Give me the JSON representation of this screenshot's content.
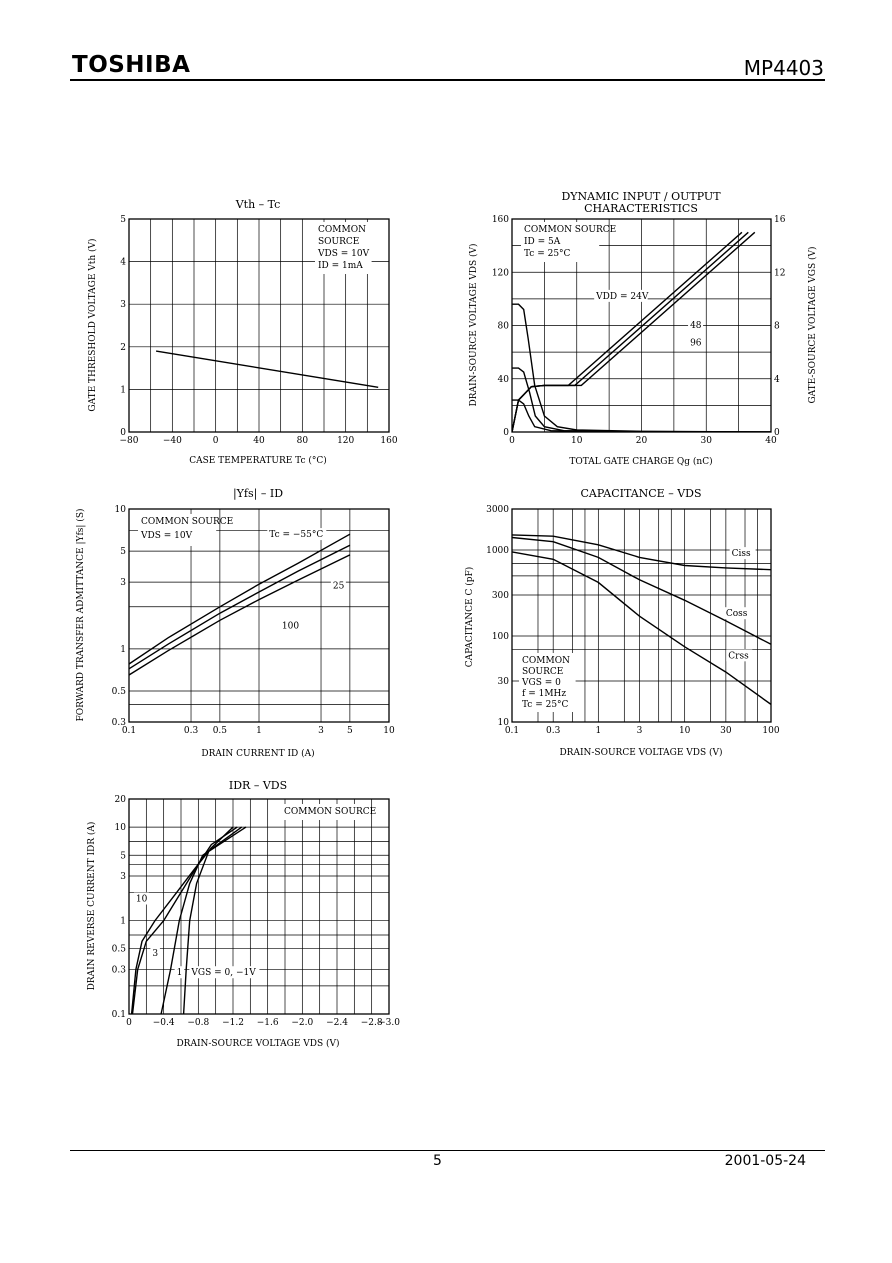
{
  "header": {
    "brand": "TOSHIBA",
    "part_number": "MP4403"
  },
  "footer": {
    "page": "5",
    "date": "2001-05-24"
  },
  "chart_data": [
    {
      "id": "vth",
      "type": "line",
      "title": "Vth – Tc",
      "xlabel": "CASE TEMPERATURE Tc (°C)",
      "ylabel": "GATE THRESHOLD VOLTAGE Vth (V)",
      "xlim": [
        -80,
        160
      ],
      "ylim": [
        0,
        5
      ],
      "xscale": "linear",
      "yscale": "linear",
      "xticks": [
        -80,
        -40,
        0,
        40,
        80,
        120,
        160
      ],
      "xtick_labels": [
        "−80",
        "−40",
        "0",
        "40",
        "80",
        "120",
        "160"
      ],
      "xgrid": [
        -80,
        -60,
        -40,
        -20,
        0,
        20,
        40,
        60,
        80,
        100,
        120,
        140,
        160
      ],
      "yticks": [
        0,
        1,
        2,
        3,
        4,
        5
      ],
      "ytick_labels": [
        "0",
        "1",
        "2",
        "3",
        "4",
        "5"
      ],
      "ygrid": [
        0,
        1,
        2,
        3,
        4,
        5
      ],
      "notes": [
        "COMMON",
        "SOURCE",
        "VDS = 10V",
        "ID = 1mA"
      ],
      "series": [
        {
          "points": [
            [
              -55,
              1.9
            ],
            [
              150,
              1.05
            ]
          ]
        }
      ],
      "labels": []
    },
    {
      "id": "dyn",
      "type": "line",
      "title": "DYNAMIC INPUT / OUTPUT",
      "title2": "CHARACTERISTICS",
      "xlabel": "TOTAL GATE CHARGE Qg (nC)",
      "ylabel": "DRAIN-SOURCE VOLTAGE VDS (V)",
      "y2label": "GATE-SOURCE VOLTAGE VGS (V)",
      "xlim": [
        0,
        40
      ],
      "ylim": [
        0,
        160
      ],
      "y2lim": [
        0,
        16
      ],
      "xscale": "linear",
      "yscale": "linear",
      "xticks": [
        0,
        10,
        20,
        30,
        40
      ],
      "xtick_labels": [
        "0",
        "10",
        "20",
        "30",
        "40"
      ],
      "xgrid": [
        0,
        5,
        10,
        15,
        20,
        25,
        30,
        35,
        40
      ],
      "yticks": [
        0,
        40,
        80,
        120,
        160
      ],
      "ytick_labels": [
        "0",
        "40",
        "80",
        "120",
        "160"
      ],
      "ygrid": [
        0,
        20,
        40,
        60,
        80,
        100,
        120,
        140,
        160
      ],
      "y2ticks": [
        0,
        4,
        8,
        12,
        16
      ],
      "y2tick_labels": [
        "0",
        "4",
        "8",
        "12",
        "16"
      ],
      "notes": [
        "COMMON SOURCE",
        "ID = 5A",
        "Tc = 25°C"
      ],
      "series": [
        {
          "points": [
            [
              0,
              96
            ],
            [
              1,
              96
            ],
            [
              1.8,
              92
            ],
            [
              2.5,
              70
            ],
            [
              3.5,
              35
            ],
            [
              5,
              12
            ],
            [
              7,
              4
            ],
            [
              10,
              1.5
            ],
            [
              20,
              0.5
            ],
            [
              40,
              0
            ]
          ]
        },
        {
          "points": [
            [
              0,
              48
            ],
            [
              1,
              48
            ],
            [
              1.8,
              45
            ],
            [
              2.7,
              30
            ],
            [
              3.6,
              12
            ],
            [
              5,
              4
            ],
            [
              8,
              1
            ],
            [
              20,
              0.3
            ],
            [
              40,
              0
            ]
          ]
        },
        {
          "points": [
            [
              0,
              24
            ],
            [
              1,
              24
            ],
            [
              1.8,
              21
            ],
            [
              2.6,
              12
            ],
            [
              3.5,
              4
            ],
            [
              6,
              1
            ],
            [
              20,
              0.2
            ],
            [
              40,
              0
            ]
          ]
        },
        {
          "points": [
            [
              0,
              0
            ],
            [
              1,
              24
            ],
            [
              3,
              34
            ],
            [
              5,
              35
            ],
            [
              8.7,
              35
            ],
            [
              35.5,
              150
            ]
          ]
        },
        {
          "points": [
            [
              0,
              0
            ],
            [
              1,
              24
            ],
            [
              3,
              34
            ],
            [
              5,
              35
            ],
            [
              9.7,
              35
            ],
            [
              36.5,
              150
            ]
          ]
        },
        {
          "points": [
            [
              0,
              0
            ],
            [
              1,
              24
            ],
            [
              3,
              34
            ],
            [
              5,
              35
            ],
            [
              10.7,
              35
            ],
            [
              37.5,
              150
            ]
          ]
        }
      ],
      "labels": [
        {
          "text": "VDD = 24V",
          "x": 13,
          "y": 100
        },
        {
          "text": "48",
          "x": 27.5,
          "y": 78
        },
        {
          "text": "96",
          "x": 27.5,
          "y": 65
        }
      ]
    },
    {
      "id": "yfs",
      "type": "line",
      "title": "|Yfs| – ID",
      "xlabel": "DRAIN CURRENT ID (A)",
      "ylabel": "FORWARD TRANSFER ADMITTANCE |Yfs| (S)",
      "xlim": [
        0.1,
        10
      ],
      "ylim": [
        0.3,
        10
      ],
      "xscale": "log",
      "yscale": "log",
      "xticks": [
        0.1,
        0.3,
        0.5,
        1,
        3,
        5,
        10
      ],
      "xtick_labels": [
        "0.1",
        "0.3",
        "0.5",
        "1",
        "3",
        "5",
        "10"
      ],
      "xgrid": [
        0.1,
        0.3,
        0.5,
        1,
        3,
        5,
        10
      ],
      "yticks": [
        0.3,
        0.5,
        1,
        3,
        5,
        10
      ],
      "ytick_labels": [
        "0.3",
        "0.5",
        "1",
        "3",
        "5",
        "10"
      ],
      "ygrid": [
        0.3,
        0.4,
        0.5,
        1,
        2,
        3,
        5,
        7,
        10
      ],
      "notes": [
        "COMMON SOURCE",
        "VDS = 10V"
      ],
      "series": [
        {
          "name": "Tc = −55°C",
          "points": [
            [
              0.1,
              0.78
            ],
            [
              0.2,
              1.2
            ],
            [
              0.5,
              2.0
            ],
            [
              1,
              2.9
            ],
            [
              2,
              4.1
            ],
            [
              5,
              6.6
            ]
          ]
        },
        {
          "name": "25",
          "points": [
            [
              0.1,
              0.72
            ],
            [
              0.2,
              1.08
            ],
            [
              0.5,
              1.8
            ],
            [
              1,
              2.55
            ],
            [
              2,
              3.6
            ],
            [
              5,
              5.5
            ]
          ]
        },
        {
          "name": "100",
          "points": [
            [
              0.1,
              0.65
            ],
            [
              0.2,
              0.97
            ],
            [
              0.5,
              1.6
            ],
            [
              1,
              2.25
            ],
            [
              2,
              3.1
            ],
            [
              5,
              4.7
            ]
          ]
        }
      ],
      "labels": [
        {
          "text": "Tc = −55°C",
          "x": 1.2,
          "y": 6.3
        },
        {
          "text": "25",
          "x": 3.7,
          "y": 2.7
        },
        {
          "text": "100",
          "x": 1.5,
          "y": 1.4
        }
      ]
    },
    {
      "id": "cap",
      "type": "line",
      "title": "CAPACITANCE – VDS",
      "xlabel": "DRAIN-SOURCE VOLTAGE VDS (V)",
      "ylabel": "CAPACITANCE C (pF)",
      "xlim": [
        0.1,
        100
      ],
      "ylim": [
        10,
        3000
      ],
      "xscale": "log",
      "yscale": "log",
      "xticks": [
        0.1,
        0.3,
        1,
        3,
        10,
        30,
        100
      ],
      "xtick_labels": [
        "0.1",
        "0.3",
        "1",
        "3",
        "10",
        "30",
        "100"
      ],
      "xgrid": [
        0.1,
        0.2,
        0.3,
        0.5,
        0.7,
        1,
        2,
        3,
        5,
        7,
        10,
        20,
        30,
        50,
        70,
        100
      ],
      "yticks": [
        10,
        30,
        100,
        300,
        1000,
        3000
      ],
      "ytick_labels": [
        "10",
        "30",
        "100",
        "300",
        "1000",
        "3000"
      ],
      "ygrid": [
        10,
        30,
        70,
        100,
        300,
        500,
        700,
        1000,
        3000
      ],
      "notes": [
        "COMMON",
        "SOURCE",
        "VGS = 0",
        "f = 1MHz",
        "Tc = 25°C"
      ],
      "series": [
        {
          "name": "Ciss",
          "points": [
            [
              0.1,
              1500
            ],
            [
              0.3,
              1450
            ],
            [
              1,
              1150
            ],
            [
              3,
              820
            ],
            [
              10,
              660
            ],
            [
              30,
              620
            ],
            [
              100,
              590
            ]
          ]
        },
        {
          "name": "Coss",
          "points": [
            [
              0.1,
              1400
            ],
            [
              0.3,
              1250
            ],
            [
              1,
              820
            ],
            [
              3,
              450
            ],
            [
              10,
              260
            ],
            [
              30,
              150
            ],
            [
              100,
              80
            ]
          ]
        },
        {
          "name": "Crss",
          "points": [
            [
              0.1,
              950
            ],
            [
              0.3,
              780
            ],
            [
              1,
              420
            ],
            [
              3,
              170
            ],
            [
              10,
              75
            ],
            [
              30,
              38
            ],
            [
              100,
              16
            ]
          ]
        }
      ],
      "labels": [
        {
          "text": "Ciss",
          "x": 35,
          "y": 850
        },
        {
          "text": "Coss",
          "x": 30,
          "y": 170
        },
        {
          "text": "Crss",
          "x": 32,
          "y": 55
        }
      ]
    },
    {
      "id": "idr",
      "type": "line",
      "title": "IDR – VDS",
      "xlabel": "DRAIN-SOURCE VOLTAGE VDS (V)",
      "ylabel": "DRAIN REVERSE CURRENT IDR (A)",
      "xlim": [
        0,
        -3.0
      ],
      "ylim": [
        0.1,
        20
      ],
      "xscale": "linear",
      "yscale": "log",
      "xticks": [
        0,
        -0.4,
        -0.8,
        -1.2,
        -1.6,
        -2.0,
        -2.4,
        -2.8,
        -3.0
      ],
      "xtick_labels": [
        "0",
        "−0.4",
        "−0.8",
        "−1.2",
        "−1.6",
        "−2.0",
        "−2.4",
        "−2.8",
        "−3.0"
      ],
      "xgrid": [
        0,
        -0.2,
        -0.4,
        -0.6,
        -0.8,
        -1.0,
        -1.2,
        -1.4,
        -1.6,
        -1.8,
        -2.0,
        -2.2,
        -2.4,
        -2.6,
        -2.8,
        -3.0
      ],
      "yticks": [
        0.1,
        0.3,
        0.5,
        1,
        3,
        5,
        10,
        20
      ],
      "ytick_labels": [
        "0.1",
        "0.3",
        "0.5",
        "1",
        "3",
        "5",
        "10",
        "20"
      ],
      "ygrid": [
        0.1,
        0.2,
        0.3,
        0.5,
        0.7,
        1,
        2,
        3,
        4,
        5,
        7,
        10,
        20
      ],
      "notes": [
        "COMMON SOURCE"
      ],
      "series": [
        {
          "name": "10",
          "points": [
            [
              -0.03,
              0.1
            ],
            [
              -0.08,
              0.3
            ],
            [
              -0.15,
              0.6
            ],
            [
              -0.3,
              1.0
            ],
            [
              -0.55,
              2.0
            ],
            [
              -0.75,
              3.5
            ],
            [
              -0.95,
              6
            ],
            [
              -1.2,
              10
            ]
          ]
        },
        {
          "name": "3",
          "points": [
            [
              -0.04,
              0.1
            ],
            [
              -0.1,
              0.3
            ],
            [
              -0.2,
              0.6
            ],
            [
              -0.4,
              1.0
            ],
            [
              -0.6,
              2.0
            ],
            [
              -0.8,
              4.0
            ],
            [
              -0.95,
              6.5
            ],
            [
              -1.25,
              10
            ]
          ]
        },
        {
          "name": "1",
          "points": [
            [
              -0.37,
              0.1
            ],
            [
              -0.48,
              0.3
            ],
            [
              -0.58,
              1.0
            ],
            [
              -0.7,
              2.5
            ],
            [
              -0.85,
              5.0
            ],
            [
              -1.3,
              10
            ]
          ]
        },
        {
          "name": "VGS = 0, −1V",
          "points": [
            [
              -0.63,
              0.1
            ],
            [
              -0.66,
              0.3
            ],
            [
              -0.7,
              1.0
            ],
            [
              -0.78,
              2.5
            ],
            [
              -0.92,
              5.5
            ],
            [
              -1.35,
              10
            ]
          ]
        }
      ],
      "labels": [
        {
          "text": "10",
          "x": -0.08,
          "y": 1.6
        },
        {
          "text": "3",
          "x": -0.27,
          "y": 0.42
        },
        {
          "text": "1",
          "x": -0.55,
          "y": 0.26
        },
        {
          "text": "VGS = 0, −1V",
          "x": -0.72,
          "y": 0.26
        }
      ]
    }
  ]
}
